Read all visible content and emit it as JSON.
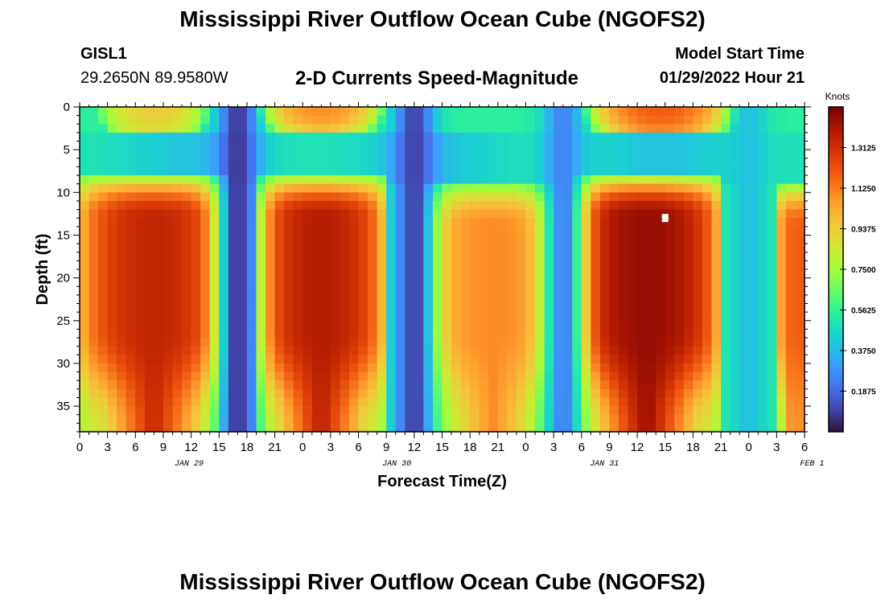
{
  "header": {
    "title": "Mississippi River Outflow Ocean Cube (NGOFS2)",
    "station": "GISL1",
    "coordinates": "29.2650N  89.9580W",
    "subtitle": "2-D Currents Speed-Magnitude",
    "model_start_label": "Model Start Time",
    "model_start_time": "01/29/2022 Hour 21"
  },
  "footer": {
    "title": "Mississippi River Outflow Ocean Cube (NGOFS2)"
  },
  "chart_data": {
    "type": "heatmap",
    "title": "2-D Currents Speed-Magnitude",
    "xlabel": "Forecast Time(Z)",
    "ylabel": "Depth (ft)",
    "xlim": [
      0,
      78
    ],
    "ylim": [
      38,
      0
    ],
    "x_ticks": [
      {
        "hour": 0,
        "label": "0"
      },
      {
        "hour": 3,
        "label": "3"
      },
      {
        "hour": 6,
        "label": "6"
      },
      {
        "hour": 9,
        "label": "9"
      },
      {
        "hour": 12,
        "label": "12"
      },
      {
        "hour": 15,
        "label": "15"
      },
      {
        "hour": 18,
        "label": "18"
      },
      {
        "hour": 21,
        "label": "21"
      },
      {
        "hour": 24,
        "label": "0"
      },
      {
        "hour": 27,
        "label": "3"
      },
      {
        "hour": 30,
        "label": "6"
      },
      {
        "hour": 33,
        "label": "9"
      },
      {
        "hour": 36,
        "label": "12"
      },
      {
        "hour": 39,
        "label": "15"
      },
      {
        "hour": 42,
        "label": "18"
      },
      {
        "hour": 45,
        "label": "21"
      },
      {
        "hour": 48,
        "label": "0"
      },
      {
        "hour": 51,
        "label": "3"
      },
      {
        "hour": 54,
        "label": "6"
      },
      {
        "hour": 57,
        "label": "9"
      },
      {
        "hour": 60,
        "label": "12"
      },
      {
        "hour": 63,
        "label": "15"
      },
      {
        "hour": 66,
        "label": "18"
      },
      {
        "hour": 69,
        "label": "21"
      },
      {
        "hour": 72,
        "label": "0"
      },
      {
        "hour": 75,
        "label": "3"
      },
      {
        "hour": 78,
        "label": "6"
      }
    ],
    "date_labels": [
      {
        "hour": 12,
        "label": "JAN 29"
      },
      {
        "hour": 36,
        "label": "JAN 30"
      },
      {
        "hour": 60,
        "label": "JAN 31"
      },
      {
        "hour": 84,
        "label": "FEB 1"
      }
    ],
    "y_ticks": [
      0,
      5,
      10,
      15,
      20,
      25,
      30,
      35
    ],
    "colorbar": {
      "units": "Knots",
      "min": 0.0,
      "max": 1.5,
      "ticks": [
        0.1875,
        0.375,
        0.5625,
        0.75,
        0.9375,
        1.125,
        1.3125
      ],
      "tick_labels": [
        "0.1875",
        "0.3750",
        "0.5625",
        "0.7500",
        "0.9375",
        "1.1250",
        "1.3125"
      ],
      "colormap": [
        "#30123b",
        "#4145ab",
        "#4675ed",
        "#39a2fc",
        "#1bcfd4",
        "#24eca6",
        "#61fc6c",
        "#a4fc3b",
        "#d1e834",
        "#f3c63a",
        "#fe9b2d",
        "#f36315",
        "#d93806",
        "#b11901",
        "#7a0403"
      ]
    },
    "marker": {
      "hour": 63,
      "depth": 13,
      "color": "#ffffff"
    },
    "high_speed_cells": [
      {
        "hour_start": 1,
        "hour_end": 15,
        "depth_top": 11,
        "depth_bottom": 38,
        "peak_knots": 1.35
      },
      {
        "hour_start": 20,
        "hour_end": 32,
        "depth_top": 11,
        "depth_bottom": 38,
        "peak_knots": 1.38
      },
      {
        "hour_start": 38,
        "hour_end": 51,
        "depth_top": 12,
        "depth_bottom": 38,
        "peak_knots": 1.1
      },
      {
        "hour_start": 54,
        "hour_end": 68,
        "depth_top": 11,
        "depth_bottom": 38,
        "peak_knots": 1.45
      },
      {
        "hour_start": 76,
        "hour_end": 78,
        "depth_top": 12,
        "depth_bottom": 38,
        "peak_knots": 1.2
      }
    ],
    "surface_cells": [
      {
        "hour_start": 4,
        "hour_end": 12,
        "depth_bottom": 3,
        "peak_knots": 0.95
      },
      {
        "hour_start": 21,
        "hour_end": 31,
        "depth_bottom": 2,
        "peak_knots": 1.1
      },
      {
        "hour_start": 56,
        "hour_end": 69,
        "depth_bottom": 3,
        "peak_knots": 1.2
      }
    ],
    "low_speed_columns": [
      {
        "hour": 17,
        "min_knots": 0.08
      },
      {
        "hour": 36,
        "min_knots": 0.1
      },
      {
        "hour": 52,
        "min_knots": 0.25
      },
      {
        "hour": 72,
        "min_knots": 0.4
      }
    ]
  }
}
